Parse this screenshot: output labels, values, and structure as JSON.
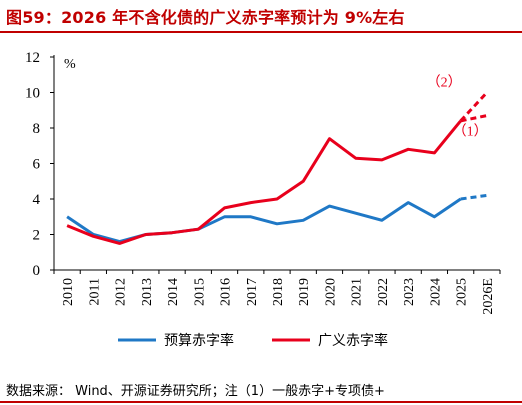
{
  "title": "图59：2026 年不含化债的广义赤字率预计为 9%左右",
  "source_note": "数据来源：  Wind、开源证券研究所；注（1）一般赤字+专项债+",
  "colors": {
    "budget": "#1f78c6",
    "broad": "#e8001c",
    "title": "#c00000"
  },
  "chart_data": {
    "type": "line",
    "categories": [
      "2010",
      "2011",
      "2012",
      "2013",
      "2014",
      "2015",
      "2016",
      "2017",
      "2018",
      "2019",
      "2020",
      "2021",
      "2022",
      "2023",
      "2024",
      "2025",
      "2026E"
    ],
    "ylim": [
      0,
      12
    ],
    "yticks": [
      0,
      2,
      4,
      6,
      8,
      10,
      12
    ],
    "yunit": "%",
    "grid": false,
    "legend_position": "bottom",
    "series": [
      {
        "name": "预算赤字率",
        "color": "#1f78c6",
        "values": [
          3.0,
          2.0,
          1.6,
          2.0,
          2.1,
          2.3,
          3.0,
          3.0,
          2.6,
          2.8,
          3.6,
          3.2,
          2.8,
          3.8,
          3.0,
          4.0,
          4.2
        ],
        "projected_from": 15
      },
      {
        "name": "广义赤字率",
        "color": "#e8001c",
        "values": [
          2.5,
          1.9,
          1.5,
          2.0,
          2.1,
          2.3,
          3.5,
          3.8,
          4.0,
          5.0,
          7.4,
          6.3,
          6.2,
          6.8,
          6.6,
          8.4,
          8.7
        ],
        "projected_from": 15,
        "alt_projection": {
          "label": "（2）",
          "value": 10.0
        },
        "projection_label": "（1）"
      }
    ]
  }
}
